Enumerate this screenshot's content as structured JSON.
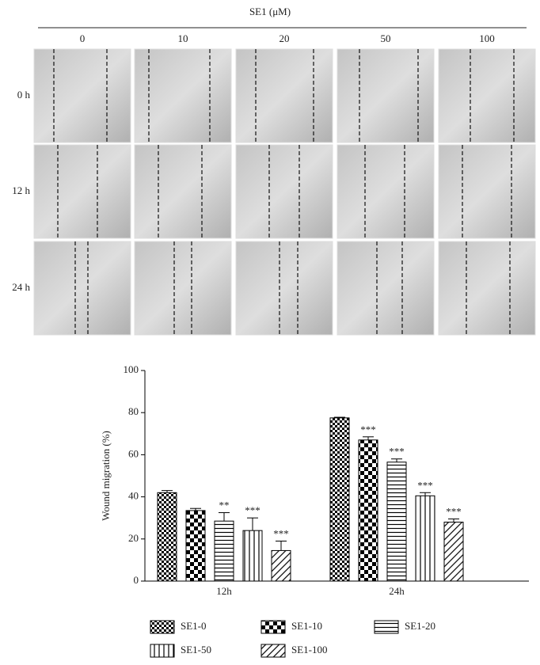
{
  "header": "SE1 (μM)",
  "columns": [
    "0",
    "10",
    "20",
    "50",
    "100"
  ],
  "rows": [
    "0 h",
    "12 h",
    "24 h"
  ],
  "chart_data": {
    "type": "bar",
    "ylabel": "Wound migration (%)",
    "categories": [
      "12h",
      "24h"
    ],
    "series": [
      {
        "name": "SE1-0",
        "values": [
          42,
          77.5
        ],
        "errors": [
          1,
          0.3
        ],
        "annotations": [
          null,
          null
        ]
      },
      {
        "name": "SE1-10",
        "values": [
          33.5,
          67
        ],
        "errors": [
          1,
          1.5
        ],
        "annotations": [
          null,
          "***"
        ]
      },
      {
        "name": "SE1-20",
        "values": [
          28.5,
          56.5
        ],
        "errors": [
          4,
          1.5
        ],
        "annotations": [
          "**",
          "***"
        ]
      },
      {
        "name": "SE1-50",
        "values": [
          24,
          40.5
        ],
        "errors": [
          6,
          1.5
        ],
        "annotations": [
          "***",
          "***"
        ]
      },
      {
        "name": "SE1-100",
        "values": [
          14.5,
          28
        ],
        "errors": [
          4.5,
          1.5
        ],
        "annotations": [
          "***",
          "***"
        ]
      }
    ],
    "ylim": [
      0,
      100
    ],
    "yticks": [
      0,
      20,
      40,
      60,
      80,
      100
    ]
  }
}
